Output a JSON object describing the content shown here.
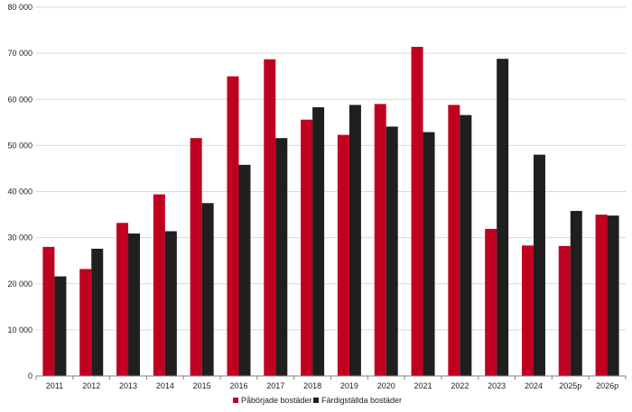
{
  "chart_data": {
    "type": "bar",
    "categories": [
      "2011",
      "2012",
      "2013",
      "2014",
      "2015",
      "2016",
      "2017",
      "2018",
      "2019",
      "2020",
      "2021",
      "2022",
      "2023",
      "2024",
      "2025p",
      "2026p"
    ],
    "series": [
      {
        "name": "Påbörjade bostäder",
        "color": "#c00020",
        "values": [
          28000,
          23200,
          33200,
          39400,
          51600,
          65000,
          68700,
          55600,
          52300,
          59000,
          71400,
          58800,
          31900,
          28300,
          28200,
          35000
        ]
      },
      {
        "name": "Färdigställda bostäder",
        "color": "#1f1f1f",
        "values": [
          21600,
          27600,
          30900,
          31400,
          37500,
          45800,
          51600,
          58300,
          58800,
          54100,
          52900,
          56600,
          68800,
          48000,
          35800,
          34800
        ]
      }
    ],
    "y_ticks": [
      "0",
      "10 000",
      "20 000",
      "30 000",
      "40 000",
      "50 000",
      "60 000",
      "70 000",
      "80 000"
    ],
    "ylim": [
      0,
      80000
    ],
    "grid": true,
    "legend_position": "bottom-center"
  }
}
